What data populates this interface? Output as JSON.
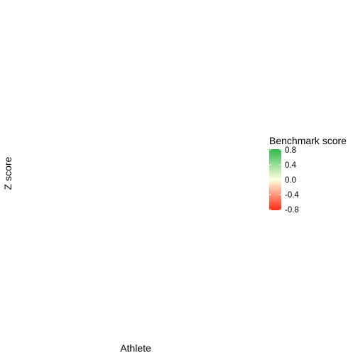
{
  "chart_data": {
    "type": "scatter",
    "title": "",
    "xlabel": "Athlete",
    "ylabel": "Z score",
    "series": [],
    "grid": false,
    "legend": {
      "title": "Benchmark score",
      "type": "colorbar",
      "placement": "right",
      "range": [
        -0.8,
        0.8
      ],
      "ticks": [
        "0.8",
        "0.4",
        "0.0",
        "-0.4",
        "-0.8"
      ],
      "tick_values": [
        0.8,
        0.4,
        0.0,
        -0.4,
        -0.8
      ],
      "colors": {
        "high": "#2db84a",
        "mid": "#ffffe0",
        "low": "#ff2a14"
      }
    }
  }
}
